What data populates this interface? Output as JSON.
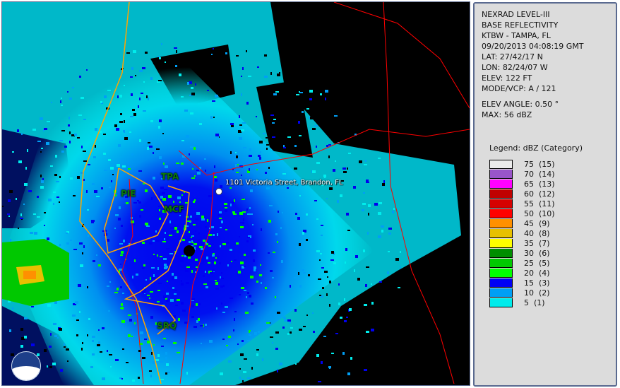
{
  "map": {
    "address_label": "1101 Victoria Street, Brandon, FL",
    "sites": [
      {
        "id": "TPA",
        "label": "TPA"
      },
      {
        "id": "PIE",
        "label": "PIE"
      },
      {
        "id": "MCF",
        "label": "MCF"
      },
      {
        "id": "SRQ",
        "label": "SRQ"
      }
    ],
    "logo_text": "NOAA",
    "colors": {
      "background": "#000000",
      "roads": "#ff0000",
      "coast": "#ffa500"
    }
  },
  "info": {
    "product": "NEXRAD LEVEL-III",
    "type": "BASE REFLECTIVITY",
    "station": "KTBW - TAMPA, FL",
    "datetime": "09/20/2013 04:08:19 GMT",
    "lat": "LAT: 27/42/17 N",
    "lon": "LON: 82/24/07 W",
    "elev": "ELEV: 122 FT",
    "mode": "MODE/VCP: A / 121",
    "elev_angle": "ELEV ANGLE: 0.50 °",
    "max": "MAX: 56 dBZ"
  },
  "legend": {
    "title": "Legend: dBZ (Category)",
    "items": [
      {
        "label": "75  (15)",
        "color": "#ebebeb"
      },
      {
        "label": "70  (14)",
        "color": "#9955c9"
      },
      {
        "label": "65  (13)",
        "color": "#ff00ff"
      },
      {
        "label": "60  (12)",
        "color": "#c00000"
      },
      {
        "label": "55  (11)",
        "color": "#d60000"
      },
      {
        "label": "50  (10)",
        "color": "#ff0000"
      },
      {
        "label": "45  (9)",
        "color": "#ff9000"
      },
      {
        "label": "40  (8)",
        "color": "#e7c000"
      },
      {
        "label": "35  (7)",
        "color": "#ffff00"
      },
      {
        "label": "30  (6)",
        "color": "#008e00"
      },
      {
        "label": "25  (5)",
        "color": "#00c800"
      },
      {
        "label": "20  (4)",
        "color": "#00ff00"
      },
      {
        "label": "15  (3)",
        "color": "#0000f5"
      },
      {
        "label": "10  (2)",
        "color": "#009ff5"
      },
      {
        "label": "5  (1)",
        "color": "#00ecec"
      }
    ]
  }
}
